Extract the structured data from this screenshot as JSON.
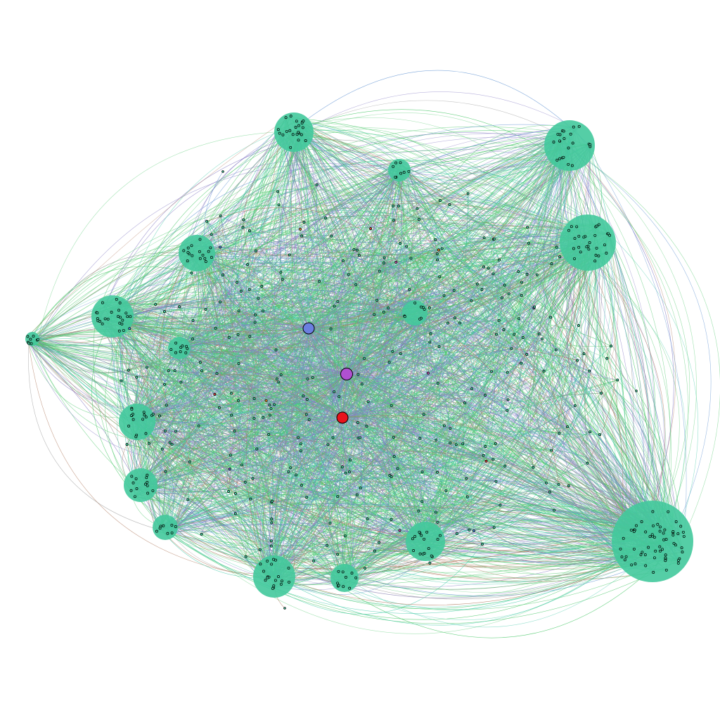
{
  "graph": {
    "type": "network",
    "labels_shown": false,
    "palette": {
      "background": "#ffffff",
      "edge_green": "#4cc86a",
      "edge_teal": "#3fc9a6",
      "edge_purple": "#8a7fc6",
      "edge_blue": "#5b8fd0",
      "edge_brown": "#b07a5e",
      "edge_grey": "#8a8a8a",
      "cluster_fill": "#42c99c",
      "node_fill": "#42c99c",
      "node_stroke": "#000000"
    },
    "hub_nodes": [
      {
        "color": "#6b7fe0"
      },
      {
        "color": "#b050d0"
      },
      {
        "color": "#e8141c"
      }
    ],
    "accent_node_colors": [
      "#d23a3a",
      "#e08a2a",
      "#7a5ad0",
      "#4a8ad8",
      "#c050b0"
    ]
  }
}
